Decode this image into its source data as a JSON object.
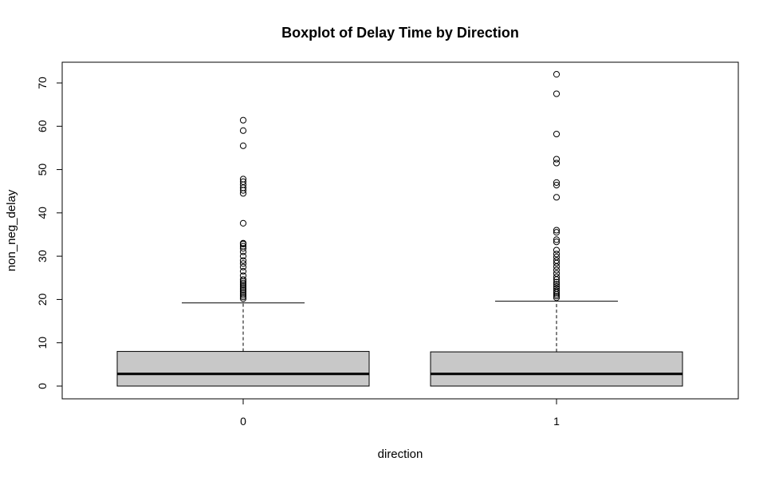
{
  "chart_data": {
    "type": "boxplot",
    "title": "Boxplot of Delay Time by Direction",
    "xlabel": "direction",
    "ylabel": "non_neg_delay",
    "ylim": [
      -3,
      73
    ],
    "yticks": [
      0,
      10,
      20,
      30,
      40,
      50,
      60,
      70
    ],
    "grid": false,
    "box_color": "#c8c8c8",
    "categories": [
      "0",
      "1"
    ],
    "boxes": [
      {
        "category": "0",
        "min": 0,
        "q1": 0,
        "median": 2.8,
        "q3": 8.0,
        "whisker_high": 19.2,
        "outliers": [
          20.2,
          20.6,
          21.0,
          21.4,
          21.8,
          22.2,
          22.6,
          23.0,
          23.4,
          23.8,
          24.2,
          24.6,
          25.5,
          26.5,
          27.5,
          28.3,
          29.0,
          30.0,
          31.0,
          31.8,
          32.3,
          32.8,
          33.0,
          37.6,
          44.5,
          45.2,
          45.8,
          46.5,
          47.2,
          47.8,
          55.5,
          59.0,
          61.4
        ]
      },
      {
        "category": "1",
        "min": 0,
        "q1": 0,
        "median": 2.8,
        "q3": 7.9,
        "whisker_high": 19.6,
        "outliers": [
          20.4,
          20.8,
          21.2,
          21.6,
          22.0,
          22.5,
          23.0,
          23.5,
          24.0,
          24.6,
          25.2,
          26.0,
          26.8,
          27.6,
          28.4,
          29.0,
          29.8,
          30.5,
          31.4,
          33.3,
          33.8,
          35.5,
          36.0,
          43.6,
          46.4,
          47.0,
          51.5,
          52.4,
          58.2,
          67.5,
          72.0
        ]
      }
    ]
  }
}
